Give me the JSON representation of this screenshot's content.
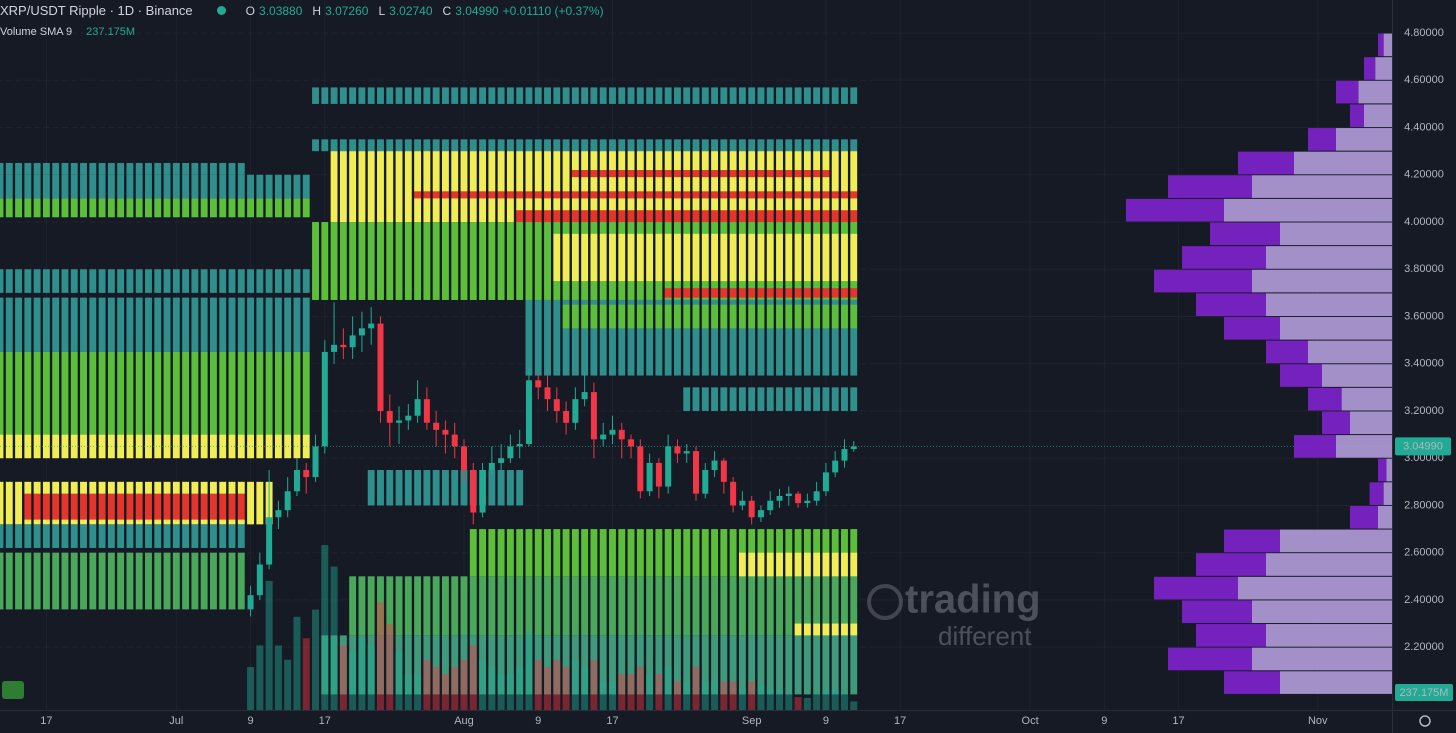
{
  "chart_data": {
    "type": "candlestick",
    "title": "XRP/USDT Ripple · 1D · Binance",
    "ohlc_header": {
      "open_label": "O",
      "open": "3.03880",
      "high_label": "H",
      "high": "3.07260",
      "low_label": "L",
      "low": "3.02740",
      "close_label": "C",
      "close": "3.04990",
      "change": "+0.01110 (+0.37%)"
    },
    "volume_indicator": {
      "name": "Volume SMA 9",
      "value": "237.175M"
    },
    "last_price_label": "3.04990",
    "watermark": {
      "line1": "trading",
      "line2": "different"
    },
    "colors": {
      "up": "#22ab94",
      "down": "#f23645"
    },
    "grid": true,
    "xlim": [
      "Jun 12",
      "Nov 9"
    ],
    "xticks": [
      {
        "value": "Jun 17",
        "label": "17"
      },
      {
        "value": "Jul 1",
        "label": "Jul"
      },
      {
        "value": "Jul 9",
        "label": "9"
      },
      {
        "value": "Jul 17",
        "label": "17"
      },
      {
        "value": "Aug 1",
        "label": "Aug"
      },
      {
        "value": "Aug 9",
        "label": "9"
      },
      {
        "value": "Aug 17",
        "label": "17"
      },
      {
        "value": "Sep 1",
        "label": "Sep"
      },
      {
        "value": "Sep 9",
        "label": "9"
      },
      {
        "value": "Sep 17",
        "label": "17"
      },
      {
        "value": "Oct 1",
        "label": "Oct"
      },
      {
        "value": "Oct 9",
        "label": "9"
      },
      {
        "value": "Oct 17",
        "label": "17"
      },
      {
        "value": "Nov 1",
        "label": "Nov"
      }
    ],
    "ylim": [
      1.934,
      4.94
    ],
    "yticks": [
      {
        "value": 2.2,
        "label": "2.20000"
      },
      {
        "value": 2.4,
        "label": "2.40000"
      },
      {
        "value": 2.6,
        "label": "2.60000"
      },
      {
        "value": 2.8,
        "label": "2.80000"
      },
      {
        "value": 3.0,
        "label": "3.00000"
      },
      {
        "value": 3.2,
        "label": "3.20000"
      },
      {
        "value": 3.4,
        "label": "3.40000"
      },
      {
        "value": 3.6,
        "label": "3.60000"
      },
      {
        "value": 3.8,
        "label": "3.80000"
      },
      {
        "value": 4.0,
        "label": "4.00000"
      },
      {
        "value": 4.2,
        "label": "4.20000"
      },
      {
        "value": 4.4,
        "label": "4.40000"
      },
      {
        "value": 4.6,
        "label": "4.60000"
      },
      {
        "value": 4.8,
        "label": "4.80000"
      }
    ],
    "vlim": [
      0,
      9900
    ],
    "x": [
      "Jul 9",
      "Jul 10",
      "Jul 11",
      "Jul 12",
      "Jul 13",
      "Jul 14",
      "Jul 15",
      "Jul 16",
      "Jul 17",
      "Jul 18",
      "Jul 19",
      "Jul 20",
      "Jul 21",
      "Jul 22",
      "Jul 23",
      "Jul 24",
      "Jul 25",
      "Jul 26",
      "Jul 27",
      "Jul 28",
      "Jul 29",
      "Jul 30",
      "Jul 31",
      "Aug 1",
      "Aug 2",
      "Aug 3",
      "Aug 4",
      "Aug 5",
      "Aug 6",
      "Aug 7",
      "Aug 8",
      "Aug 9",
      "Aug 10",
      "Aug 11",
      "Aug 12",
      "Aug 13",
      "Aug 14",
      "Aug 15",
      "Aug 16",
      "Aug 17",
      "Aug 18",
      "Aug 19",
      "Aug 20",
      "Aug 21",
      "Aug 22",
      "Aug 23",
      "Aug 24",
      "Aug 25",
      "Aug 26",
      "Aug 27",
      "Aug 28",
      "Aug 29",
      "Aug 30",
      "Aug 31",
      "Sep 1",
      "Sep 2",
      "Sep 3",
      "Sep 4",
      "Sep 5",
      "Sep 6",
      "Sep 7",
      "Sep 8",
      "Sep 9",
      "Sep 10",
      "Sep 11",
      "Sep 12"
    ],
    "open": [
      2.36,
      2.42,
      2.55,
      2.75,
      2.78,
      2.86,
      2.95,
      2.92,
      3.05,
      3.45,
      3.48,
      3.47,
      3.52,
      3.55,
      3.57,
      3.2,
      3.15,
      3.16,
      3.18,
      3.25,
      3.15,
      3.12,
      3.1,
      3.05,
      2.95,
      2.77,
      2.95,
      2.98,
      3.0,
      3.05,
      3.06,
      3.33,
      3.3,
      3.25,
      3.2,
      3.15,
      3.25,
      3.28,
      3.08,
      3.1,
      3.12,
      3.08,
      3.05,
      2.86,
      2.98,
      2.88,
      3.05,
      3.02,
      3.03,
      2.85,
      2.95,
      2.99,
      2.9,
      2.8,
      2.82,
      2.75,
      2.78,
      2.82,
      2.84,
      2.85,
      2.81,
      2.82,
      2.86,
      2.94,
      2.99,
      3.0388
    ],
    "high": [
      2.46,
      2.6,
      2.95,
      2.82,
      2.92,
      3.0,
      2.98,
      3.1,
      3.5,
      3.66,
      3.55,
      3.6,
      3.62,
      3.64,
      3.6,
      3.27,
      3.22,
      3.23,
      3.33,
      3.3,
      3.2,
      3.16,
      3.15,
      3.08,
      2.98,
      2.98,
      3.05,
      3.06,
      3.1,
      3.12,
      3.38,
      3.36,
      3.35,
      3.3,
      3.24,
      3.3,
      3.36,
      3.32,
      3.15,
      3.18,
      3.15,
      3.1,
      3.08,
      3.02,
      3.0,
      3.1,
      3.08,
      3.06,
      3.05,
      2.98,
      3.03,
      3.0,
      2.92,
      2.86,
      2.84,
      2.8,
      2.86,
      2.87,
      2.88,
      2.86,
      2.85,
      2.9,
      2.98,
      3.03,
      3.08,
      3.0726
    ],
    "low": [
      2.33,
      2.4,
      2.53,
      2.7,
      2.75,
      2.84,
      2.85,
      2.9,
      3.02,
      3.4,
      3.42,
      3.42,
      3.45,
      3.48,
      3.15,
      3.05,
      3.06,
      3.12,
      3.15,
      3.12,
      3.05,
      3.02,
      3.0,
      2.9,
      2.72,
      2.75,
      2.93,
      2.95,
      2.98,
      3.0,
      3.05,
      3.25,
      3.2,
      3.15,
      3.1,
      3.12,
      3.22,
      3.0,
      3.05,
      3.06,
      3.0,
      3.0,
      2.83,
      2.84,
      2.83,
      2.85,
      2.98,
      2.98,
      2.82,
      2.83,
      2.92,
      2.85,
      2.77,
      2.78,
      2.72,
      2.73,
      2.76,
      2.79,
      2.8,
      2.79,
      2.79,
      2.8,
      2.84,
      2.92,
      2.96,
      3.0274
    ],
    "close": [
      2.42,
      2.55,
      2.75,
      2.78,
      2.86,
      2.95,
      2.92,
      3.05,
      3.45,
      3.48,
      3.47,
      3.52,
      3.55,
      3.57,
      3.2,
      3.15,
      3.16,
      3.18,
      3.25,
      3.15,
      3.12,
      3.1,
      3.05,
      2.95,
      2.77,
      2.95,
      2.98,
      3.0,
      3.05,
      3.06,
      3.33,
      3.3,
      3.25,
      3.2,
      3.15,
      3.25,
      3.28,
      3.08,
      3.1,
      3.12,
      3.08,
      3.05,
      2.86,
      2.98,
      2.88,
      3.05,
      3.02,
      3.03,
      2.85,
      2.95,
      2.99,
      2.9,
      2.8,
      2.82,
      2.75,
      2.78,
      2.82,
      2.84,
      2.85,
      2.81,
      2.82,
      2.86,
      2.94,
      2.99,
      3.0388,
      3.0499
    ],
    "volume": [
      600,
      900,
      1800,
      900,
      700,
      1300,
      1000,
      1400,
      2300,
      2000,
      900,
      800,
      1000,
      900,
      1500,
      1200,
      800,
      500,
      500,
      700,
      600,
      500,
      600,
      700,
      900,
      700,
      600,
      500,
      500,
      600,
      1100,
      700,
      600,
      700,
      600,
      700,
      600,
      700,
      400,
      400,
      500,
      500,
      600,
      500,
      500,
      600,
      400,
      400,
      600,
      400,
      400,
      400,
      400,
      300,
      400,
      350,
      300,
      300,
      250,
      180,
      170,
      220,
      280,
      300,
      250,
      120
    ],
    "heatmap": [
      {
        "from": "Jun 12",
        "to": "Jul 8",
        "low": 4.2,
        "high": 4.25,
        "color": "#2f8f8c"
      },
      {
        "from": "Jun 12",
        "to": "Jul 15",
        "low": 4.1,
        "high": 4.2,
        "color": "#2f8f8c"
      },
      {
        "from": "Jun 12",
        "to": "Jul 15",
        "low": 4.02,
        "high": 4.1,
        "color": "#5cbf3a"
      },
      {
        "from": "Jun 12",
        "to": "Jul 15",
        "low": 3.7,
        "high": 3.8,
        "color": "#2f8f8c"
      },
      {
        "from": "Jun 12",
        "to": "Jul 15",
        "low": 3.45,
        "high": 3.68,
        "color": "#2f8f8c"
      },
      {
        "from": "Jun 12",
        "to": "Jul 15",
        "low": 3.1,
        "high": 3.45,
        "color": "#5cbf3a"
      },
      {
        "from": "Jun 12",
        "to": "Jul 15",
        "low": 3.0,
        "high": 3.1,
        "color": "#f1ee55"
      },
      {
        "from": "Jun 12",
        "to": "Jul 11",
        "low": 2.72,
        "high": 2.9,
        "color": "#f1ee55"
      },
      {
        "from": "Jun 15",
        "to": "Jul 8",
        "low": 2.74,
        "high": 2.85,
        "color": "#e5352b"
      },
      {
        "from": "Jun 12",
        "to": "Jul 8",
        "low": 2.62,
        "high": 2.72,
        "color": "#2f8f8c"
      },
      {
        "from": "Jun 12",
        "to": "Jul 8",
        "low": 2.36,
        "high": 2.6,
        "color": "#4aa85a"
      },
      {
        "from": "Jul 16",
        "to": "Sep 12",
        "low": 4.5,
        "high": 4.57,
        "color": "#2f8f8c"
      },
      {
        "from": "Jul 16",
        "to": "Sep 12",
        "low": 4.3,
        "high": 4.35,
        "color": "#2f8f8c"
      },
      {
        "from": "Jul 18",
        "to": "Sep 12",
        "low": 4.0,
        "high": 4.3,
        "color": "#f1ee55"
      },
      {
        "from": "Aug 7",
        "to": "Sep 12",
        "low": 4.0,
        "high": 4.05,
        "color": "#e5352b"
      },
      {
        "from": "Jul 27",
        "to": "Sep 12",
        "low": 4.1,
        "high": 4.13,
        "color": "#e5352b"
      },
      {
        "from": "Aug 13",
        "to": "Sep 9",
        "low": 4.19,
        "high": 4.22,
        "color": "#e5352b"
      },
      {
        "from": "Jul 16",
        "to": "Sep 12",
        "low": 3.67,
        "high": 4.0,
        "color": "#5cbf3a"
      },
      {
        "from": "Aug 11",
        "to": "Sep 12",
        "low": 3.75,
        "high": 3.95,
        "color": "#f1ee55"
      },
      {
        "from": "Aug 23",
        "to": "Sep 12",
        "low": 3.68,
        "high": 3.72,
        "color": "#e5352b"
      },
      {
        "from": "Aug 8",
        "to": "Sep 12",
        "low": 3.35,
        "high": 3.67,
        "color": "#2f8f8c"
      },
      {
        "from": "Aug 12",
        "to": "Sep 12",
        "low": 3.55,
        "high": 3.65,
        "color": "#5cbf3a"
      },
      {
        "from": "Aug 25",
        "to": "Sep 12",
        "low": 3.2,
        "high": 3.3,
        "color": "#2f8f8c"
      },
      {
        "from": "Jul 22",
        "to": "Aug 7",
        "low": 2.8,
        "high": 2.95,
        "color": "#2f8f8c"
      },
      {
        "from": "Aug 2",
        "to": "Sep 12",
        "low": 2.5,
        "high": 2.7,
        "color": "#5cbf3a"
      },
      {
        "from": "Aug 31",
        "to": "Sep 12",
        "low": 2.45,
        "high": 2.6,
        "color": "#f1ee55"
      },
      {
        "from": "Jul 20",
        "to": "Sep 12",
        "low": 2.25,
        "high": 2.5,
        "color": "#4aa85a"
      },
      {
        "from": "Sep 6",
        "to": "Sep 12",
        "low": 2.2,
        "high": 2.3,
        "color": "#f1ee55"
      },
      {
        "from": "Jul 17",
        "to": "Sep 12",
        "low": 2.0,
        "high": 2.25,
        "color": "#3e9a7a"
      }
    ],
    "volume_profile": {
      "bins": [
        2.0,
        2.1,
        2.2,
        2.3,
        2.4,
        2.5,
        2.6,
        2.7,
        2.8,
        2.9,
        3.0,
        3.1,
        3.2,
        3.3,
        3.4,
        3.5,
        3.6,
        3.7,
        3.8,
        3.9,
        4.0,
        4.1,
        4.2,
        4.3,
        4.4,
        4.5,
        4.6,
        4.7,
        4.8
      ],
      "xlim": [
        0,
        100
      ],
      "series": [
        {
          "color": "#b39ddb",
          "values": [
            40,
            50,
            45,
            50,
            55,
            45,
            40,
            5,
            3,
            2,
            20,
            15,
            18,
            25,
            30,
            40,
            45,
            50,
            45,
            40,
            60,
            50,
            35,
            20,
            10,
            12,
            6,
            3
          ]
        },
        {
          "color": "#7e22ce",
          "values": [
            20,
            30,
            25,
            25,
            30,
            25,
            20,
            10,
            5,
            3,
            15,
            10,
            12,
            15,
            15,
            20,
            25,
            35,
            30,
            25,
            35,
            30,
            20,
            10,
            5,
            8,
            4,
            2
          ]
        }
      ]
    }
  }
}
